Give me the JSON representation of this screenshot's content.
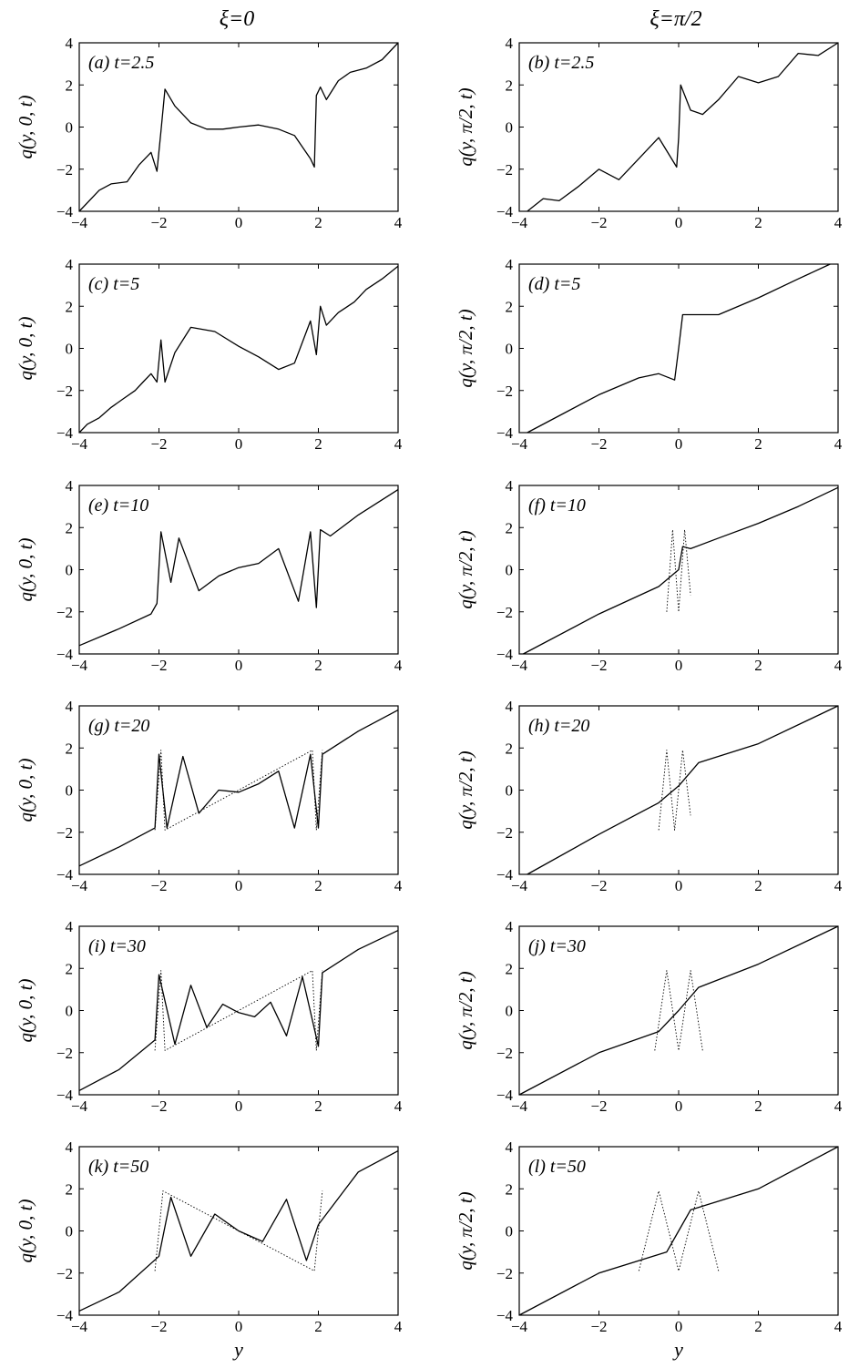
{
  "figure": {
    "column_titles": [
      "ξ=0",
      "ξ=π/2"
    ],
    "x_axis_label": "y"
  },
  "chart_data": [
    {
      "type": "line",
      "panel": "(a)",
      "label": "t=2.5",
      "ylabel": "q(y, 0, t)",
      "xlim": [
        -4,
        4
      ],
      "ylim": [
        -4,
        4
      ],
      "xticks": [
        -4,
        -2,
        0,
        2,
        4
      ],
      "yticks": [
        -4,
        -2,
        0,
        2,
        4
      ],
      "xticklabels": [
        "−4",
        "−2",
        "0",
        "2",
        "4"
      ],
      "yticklabels": [
        "−4",
        "−2",
        "0",
        "2",
        "4"
      ],
      "xlabel": "",
      "series": [
        {
          "style": "solid",
          "x": [
            -4,
            -3.5,
            -3.2,
            -2.8,
            -2.5,
            -2.2,
            -2.05,
            -1.95,
            -1.85,
            -1.6,
            -1.2,
            -0.8,
            -0.4,
            0,
            0.5,
            1,
            1.4,
            1.8,
            1.9,
            1.95,
            2.05,
            2.2,
            2.5,
            2.8,
            3.2,
            3.6,
            4
          ],
          "y": [
            -4,
            -3,
            -2.7,
            -2.6,
            -1.8,
            -1.2,
            -2.1,
            -0.2,
            1.8,
            1.0,
            0.2,
            -0.1,
            -0.1,
            0,
            0.1,
            -0.1,
            -0.4,
            -1.5,
            -1.9,
            1.5,
            1.9,
            1.3,
            2.2,
            2.6,
            2.8,
            3.2,
            4
          ]
        }
      ]
    },
    {
      "type": "line",
      "panel": "(b)",
      "label": "t=2.5",
      "ylabel": "q(y, π/2, t)",
      "xlim": [
        -4,
        4
      ],
      "ylim": [
        -4,
        4
      ],
      "xticks": [
        -4,
        -2,
        0,
        2,
        4
      ],
      "yticks": [
        -4,
        -2,
        0,
        2,
        4
      ],
      "xticklabels": [
        "−4",
        "−2",
        "0",
        "2",
        "4"
      ],
      "yticklabels": [
        "−4",
        "−2",
        "0",
        "2",
        "4"
      ],
      "xlabel": "",
      "series": [
        {
          "style": "solid",
          "x": [
            -3.8,
            -3.4,
            -3,
            -2.5,
            -2,
            -1.5,
            -1,
            -0.5,
            -0.05,
            0,
            0.05,
            0.3,
            0.6,
            1,
            1.5,
            2,
            2.5,
            3,
            3.5,
            4
          ],
          "y": [
            -4,
            -3.4,
            -3.5,
            -2.8,
            -2,
            -2.5,
            -1.5,
            -0.5,
            -1.9,
            -0.5,
            2.0,
            0.8,
            0.6,
            1.3,
            2.4,
            2.1,
            2.4,
            3.5,
            3.4,
            4
          ]
        }
      ]
    },
    {
      "type": "line",
      "panel": "(c)",
      "label": "t=5",
      "ylabel": "q(y, 0, t)",
      "xlim": [
        -4,
        4
      ],
      "ylim": [
        -4,
        4
      ],
      "xticks": [
        -4,
        -2,
        0,
        2,
        4
      ],
      "yticks": [
        -4,
        -2,
        0,
        2,
        4
      ],
      "xticklabels": [
        "−4",
        "−2",
        "0",
        "2",
        "4"
      ],
      "yticklabels": [
        "−4",
        "−2",
        "0",
        "2",
        "4"
      ],
      "xlabel": "",
      "series": [
        {
          "style": "solid",
          "x": [
            -4,
            -3.8,
            -3.5,
            -3.2,
            -2.9,
            -2.6,
            -2.4,
            -2.2,
            -2.05,
            -1.95,
            -1.85,
            -1.6,
            -1.2,
            -0.6,
            0,
            0.5,
            1,
            1.4,
            1.8,
            1.95,
            2.05,
            2.2,
            2.5,
            2.9,
            3.2,
            3.6,
            4
          ],
          "y": [
            -4,
            -3.6,
            -3.3,
            -2.8,
            -2.4,
            -2.0,
            -1.6,
            -1.2,
            -1.6,
            0.4,
            -1.6,
            -0.2,
            1.0,
            0.8,
            0.1,
            -0.4,
            -1.0,
            -0.7,
            1.3,
            -0.3,
            2.0,
            1.1,
            1.7,
            2.2,
            2.8,
            3.3,
            3.9
          ]
        }
      ]
    },
    {
      "type": "line",
      "panel": "(d)",
      "label": "t=5",
      "ylabel": "q(y, π/2, t)",
      "xlim": [
        -4,
        4
      ],
      "ylim": [
        -4,
        4
      ],
      "xticks": [
        -4,
        -2,
        0,
        2,
        4
      ],
      "yticks": [
        -4,
        -2,
        0,
        2,
        4
      ],
      "xticklabels": [
        "−4",
        "−2",
        "0",
        "2",
        "4"
      ],
      "yticklabels": [
        "−4",
        "−2",
        "0",
        "2",
        "4"
      ],
      "xlabel": "",
      "series": [
        {
          "style": "solid",
          "x": [
            -3.8,
            -3,
            -2,
            -1,
            -0.5,
            -0.1,
            0,
            0.1,
            0.5,
            1,
            2,
            3,
            3.8
          ],
          "y": [
            -4,
            -3.2,
            -2.2,
            -1.4,
            -1.2,
            -1.5,
            0,
            1.6,
            1.6,
            1.6,
            2.4,
            3.3,
            4
          ]
        }
      ]
    },
    {
      "type": "line",
      "panel": "(e)",
      "label": "t=10",
      "ylabel": "q(y, 0, t)",
      "xlim": [
        -4,
        4
      ],
      "ylim": [
        -4,
        4
      ],
      "xticks": [
        -4,
        -2,
        0,
        2,
        4
      ],
      "yticks": [
        -4,
        -2,
        0,
        2,
        4
      ],
      "xticklabels": [
        "−4",
        "−2",
        "0",
        "2",
        "4"
      ],
      "yticklabels": [
        "−4",
        "−2",
        "0",
        "2",
        "4"
      ],
      "xlabel": "",
      "series": [
        {
          "style": "solid",
          "x": [
            -4,
            -3,
            -2.2,
            -2.05,
            -1.95,
            -1.7,
            -1.5,
            -1,
            -0.5,
            0,
            0.5,
            1,
            1.5,
            1.8,
            1.95,
            2.05,
            2.3,
            3,
            4
          ],
          "y": [
            -3.6,
            -2.8,
            -2.1,
            -1.6,
            1.8,
            -0.6,
            1.5,
            -1.0,
            -0.3,
            0.1,
            0.3,
            1.0,
            -1.5,
            1.8,
            -1.8,
            1.9,
            1.6,
            2.6,
            3.8
          ]
        }
      ]
    },
    {
      "type": "line",
      "panel": "(f)",
      "label": "t=10",
      "ylabel": "q(y, π/2, t)",
      "xlim": [
        -4,
        4
      ],
      "ylim": [
        -4,
        4
      ],
      "xticks": [
        -4,
        -2,
        0,
        2,
        4
      ],
      "yticks": [
        -4,
        -2,
        0,
        2,
        4
      ],
      "xticklabels": [
        "−4",
        "−2",
        "0",
        "2",
        "4"
      ],
      "yticklabels": [
        "−4",
        "−2",
        "0",
        "2",
        "4"
      ],
      "xlabel": "",
      "series": [
        {
          "style": "solid",
          "x": [
            -3.9,
            -2,
            -0.5,
            0,
            0.1,
            0.3,
            1,
            2,
            3,
            4
          ],
          "y": [
            -4,
            -2.1,
            -0.8,
            0,
            1.1,
            1.0,
            1.5,
            2.2,
            3.0,
            3.9
          ]
        },
        {
          "style": "dotted",
          "x": [
            -0.3,
            -0.15,
            0,
            0.15,
            0.3
          ],
          "y": [
            -2,
            1.9,
            -2,
            1.9,
            -1.2
          ]
        }
      ]
    },
    {
      "type": "line",
      "panel": "(g)",
      "label": "t=20",
      "ylabel": "q(y, 0, t)",
      "xlim": [
        -4,
        4
      ],
      "ylim": [
        -4,
        4
      ],
      "xticks": [
        -4,
        -2,
        0,
        2,
        4
      ],
      "yticks": [
        -4,
        -2,
        0,
        2,
        4
      ],
      "xticklabels": [
        "−4",
        "−2",
        "0",
        "2",
        "4"
      ],
      "yticklabels": [
        "−4",
        "−2",
        "0",
        "2",
        "4"
      ],
      "xlabel": "",
      "series": [
        {
          "style": "solid",
          "x": [
            -4,
            -3,
            -2.1,
            -2,
            -1.8,
            -1.4,
            -1,
            -0.5,
            0,
            0.5,
            1,
            1.4,
            1.8,
            2,
            2.1,
            3,
            4
          ],
          "y": [
            -3.6,
            -2.7,
            -1.8,
            1.7,
            -1.8,
            1.6,
            -1.1,
            0,
            -0.1,
            0.3,
            0.9,
            -1.8,
            1.7,
            -1.8,
            1.7,
            2.8,
            3.8
          ]
        },
        {
          "style": "dotted",
          "x": [
            -2.1,
            -1.95,
            -1.85,
            1.85,
            1.95,
            2.1
          ],
          "y": [
            -1.9,
            1.9,
            -1.9,
            1.9,
            -1.9,
            1.9
          ]
        }
      ]
    },
    {
      "type": "line",
      "panel": "(h)",
      "label": "t=20",
      "ylabel": "q(y, π/2, t)",
      "xlim": [
        -4,
        4
      ],
      "ylim": [
        -4,
        4
      ],
      "xticks": [
        -4,
        -2,
        0,
        2,
        4
      ],
      "yticks": [
        -4,
        -2,
        0,
        2,
        4
      ],
      "xticklabels": [
        "−4",
        "−2",
        "0",
        "2",
        "4"
      ],
      "yticklabels": [
        "−4",
        "−2",
        "0",
        "2",
        "4"
      ],
      "xlabel": "",
      "series": [
        {
          "style": "solid",
          "x": [
            -3.8,
            -2,
            -0.5,
            0,
            0.5,
            2,
            4
          ],
          "y": [
            -4,
            -2.1,
            -0.6,
            0.2,
            1.3,
            2.2,
            4
          ]
        },
        {
          "style": "dotted",
          "x": [
            -0.5,
            -0.3,
            -0.1,
            0.1,
            0.3
          ],
          "y": [
            -1.9,
            1.9,
            -1.9,
            1.9,
            -1.2
          ]
        }
      ]
    },
    {
      "type": "line",
      "panel": "(i)",
      "label": "t=30",
      "ylabel": "q(y, 0, t)",
      "xlim": [
        -4,
        4
      ],
      "ylim": [
        -4,
        4
      ],
      "xticks": [
        -4,
        -2,
        0,
        2,
        4
      ],
      "yticks": [
        -4,
        -2,
        0,
        2,
        4
      ],
      "xticklabels": [
        "−4",
        "−2",
        "0",
        "2",
        "4"
      ],
      "yticklabels": [
        "−4",
        "−2",
        "0",
        "2",
        "4"
      ],
      "xlabel": "",
      "series": [
        {
          "style": "solid",
          "x": [
            -4,
            -3,
            -2.1,
            -2,
            -1.6,
            -1.2,
            -0.8,
            -0.4,
            0,
            0.4,
            0.8,
            1.2,
            1.6,
            2,
            2.1,
            3,
            4
          ],
          "y": [
            -3.8,
            -2.8,
            -1.4,
            1.7,
            -1.6,
            1.2,
            -0.8,
            0.3,
            -0.1,
            -0.3,
            0.4,
            -1.2,
            1.6,
            -1.7,
            1.8,
            2.9,
            3.8
          ]
        },
        {
          "style": "dotted",
          "x": [
            -2.1,
            -1.95,
            -1.85,
            1.85,
            1.95,
            2.1
          ],
          "y": [
            -1.9,
            1.9,
            -1.9,
            1.9,
            -1.9,
            1.9
          ]
        }
      ]
    },
    {
      "type": "line",
      "panel": "(j)",
      "label": "t=30",
      "ylabel": "q(y, π/2, t)",
      "xlim": [
        -4,
        4
      ],
      "ylim": [
        -4,
        4
      ],
      "xticks": [
        -4,
        -2,
        0,
        2,
        4
      ],
      "yticks": [
        -4,
        -2,
        0,
        2,
        4
      ],
      "xticklabels": [
        "−4",
        "−2",
        "0",
        "2",
        "4"
      ],
      "yticklabels": [
        "−4",
        "−2",
        "0",
        "2",
        "4"
      ],
      "xlabel": "",
      "series": [
        {
          "style": "solid",
          "x": [
            -4,
            -2,
            -0.5,
            0,
            0.5,
            2,
            4
          ],
          "y": [
            -4,
            -2,
            -1,
            0,
            1.1,
            2.2,
            4
          ]
        },
        {
          "style": "dotted",
          "x": [
            -0.6,
            -0.3,
            0,
            0.3,
            0.6
          ],
          "y": [
            -1.9,
            1.9,
            -1.9,
            1.9,
            -1.9
          ]
        }
      ]
    },
    {
      "type": "line",
      "panel": "(k)",
      "label": "t=50",
      "ylabel": "q(y, 0, t)",
      "xlim": [
        -4,
        4
      ],
      "ylim": [
        -4,
        4
      ],
      "xticks": [
        -4,
        -2,
        0,
        2,
        4
      ],
      "yticks": [
        -4,
        -2,
        0,
        2,
        4
      ],
      "xticklabels": [
        "−4",
        "−2",
        "0",
        "2",
        "4"
      ],
      "yticklabels": [
        "−4",
        "−2",
        "0",
        "2",
        "4"
      ],
      "xlabel": "y",
      "series": [
        {
          "style": "solid",
          "x": [
            -4,
            -3,
            -2,
            -1.7,
            -1.2,
            -0.6,
            0,
            0.6,
            1.2,
            1.7,
            2,
            3,
            4
          ],
          "y": [
            -3.8,
            -2.9,
            -1.2,
            1.6,
            -1.2,
            0.8,
            0,
            -0.5,
            1.5,
            -1.4,
            0.3,
            2.8,
            3.8
          ]
        },
        {
          "style": "dotted",
          "x": [
            -2.1,
            -1.9,
            1.9,
            2.1
          ],
          "y": [
            -1.9,
            1.9,
            -1.9,
            1.9
          ]
        }
      ]
    },
    {
      "type": "line",
      "panel": "(l)",
      "label": "t=50",
      "ylabel": "q(y, π/2, t)",
      "xlim": [
        -4,
        4
      ],
      "ylim": [
        -4,
        4
      ],
      "xticks": [
        -4,
        -2,
        0,
        2,
        4
      ],
      "yticks": [
        -4,
        -2,
        0,
        2,
        4
      ],
      "xticklabels": [
        "−4",
        "−2",
        "0",
        "2",
        "4"
      ],
      "yticklabels": [
        "−4",
        "−2",
        "0",
        "2",
        "4"
      ],
      "xlabel": "y",
      "series": [
        {
          "style": "solid",
          "x": [
            -4,
            -2,
            -0.3,
            0,
            0.3,
            2,
            4
          ],
          "y": [
            -4,
            -2,
            -1,
            0,
            1,
            2,
            4
          ]
        },
        {
          "style": "dotted",
          "x": [
            -1,
            -0.5,
            0,
            0.5,
            1
          ],
          "y": [
            -1.9,
            1.9,
            -1.9,
            1.9,
            -1.9
          ]
        }
      ]
    }
  ]
}
